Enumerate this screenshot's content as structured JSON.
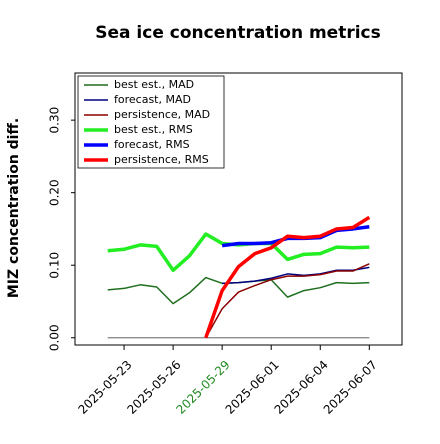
{
  "chart_data": {
    "type": "line",
    "title": "Sea ice concentration metrics",
    "ylabel": "MIZ concentration diff.",
    "x": [
      "2025-05-22",
      "2025-05-23",
      "2025-05-24",
      "2025-05-25",
      "2025-05-26",
      "2025-05-27",
      "2025-05-28",
      "2025-05-29",
      "2025-05-30",
      "2025-05-31",
      "2025-06-01",
      "2025-06-02",
      "2025-06-03",
      "2025-06-04",
      "2025-06-05",
      "2025-06-06",
      "2025-06-07"
    ],
    "series": [
      {
        "name": "best est., MAD",
        "color": "#1f6f1f",
        "values": [
          0.066,
          0.068,
          0.073,
          0.07,
          0.047,
          0.062,
          0.083,
          0.075,
          0.076,
          0.078,
          0.08,
          0.056,
          0.065,
          0.069,
          0.076,
          0.075,
          0.076
        ]
      },
      {
        "name": "forecast,  MAD",
        "color": "#00007f",
        "values": [
          null,
          null,
          null,
          null,
          null,
          null,
          null,
          0.075,
          0.076,
          0.078,
          0.082,
          0.088,
          0.086,
          0.088,
          0.093,
          0.093,
          0.097
        ]
      },
      {
        "name": "persistence, MAD",
        "color": "#8b0000",
        "values": [
          null,
          null,
          null,
          null,
          null,
          null,
          0.0,
          0.04,
          0.063,
          0.072,
          0.08,
          0.085,
          0.085,
          0.087,
          0.092,
          0.092,
          0.102
        ]
      },
      {
        "name": "best est., RMS",
        "color": "#22ee22",
        "values": [
          0.12,
          0.122,
          0.128,
          0.126,
          0.093,
          0.113,
          0.143,
          0.13,
          0.128,
          0.13,
          0.13,
          0.108,
          0.115,
          0.116,
          0.125,
          0.124,
          0.125
        ]
      },
      {
        "name": "forecast,  RMS",
        "color": "#0000ff",
        "values": [
          null,
          null,
          null,
          null,
          null,
          null,
          null,
          0.127,
          0.13,
          0.13,
          0.131,
          0.137,
          0.137,
          0.138,
          0.148,
          0.15,
          0.153
        ]
      },
      {
        "name": "persistence, RMS",
        "color": "#ff0000",
        "values": [
          null,
          null,
          null,
          null,
          null,
          null,
          0.0,
          0.065,
          0.098,
          0.116,
          0.124,
          0.14,
          0.138,
          0.14,
          0.15,
          0.152,
          0.166
        ]
      }
    ],
    "xlim": [
      "2025-05-20",
      "2025-06-09"
    ],
    "xticks": [
      "2025-05-23",
      "2025-05-26",
      "2025-05-29",
      "2025-06-01",
      "2025-06-04",
      "2025-06-07"
    ],
    "highlight_xtick": "2025-05-29",
    "highlight_color": "#228b22",
    "ylim": [
      -0.01,
      0.365
    ],
    "yticks": [
      {
        "value": 0,
        "label": "0.00"
      },
      {
        "value": 0.1,
        "label": "0.10"
      },
      {
        "value": 0.2,
        "label": "0.20"
      },
      {
        "value": 0.3,
        "label": "0.30"
      }
    ],
    "legend": "upper left",
    "grid": false
  }
}
